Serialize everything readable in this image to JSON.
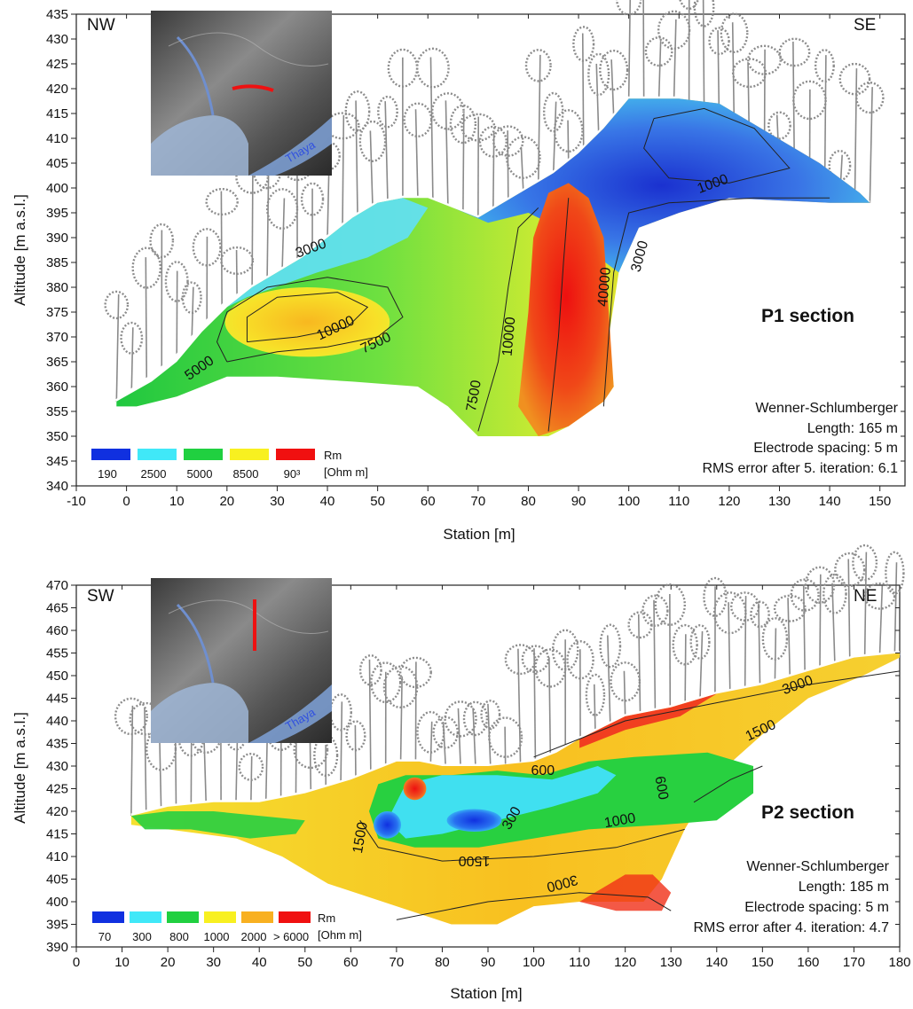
{
  "chart_data": [
    {
      "type": "heatmap",
      "id": "p1",
      "corner_left": "NW",
      "corner_right": "SE",
      "title": "P1 section",
      "xlabel": "Station [m]",
      "ylabel": "Altitude [m a.s.l.]",
      "xlim": [
        -10,
        155
      ],
      "ylim": [
        340,
        435
      ],
      "x_ticks": [
        -10,
        0,
        10,
        20,
        30,
        40,
        50,
        60,
        70,
        80,
        90,
        100,
        110,
        120,
        130,
        140,
        150
      ],
      "y_ticks": [
        340,
        345,
        350,
        355,
        360,
        365,
        370,
        375,
        380,
        385,
        390,
        395,
        400,
        405,
        410,
        415,
        420,
        425,
        430,
        435
      ],
      "info_lines": [
        "Wenner-Schlumberger",
        "Length: 165 m",
        "Electrode spacing: 5 m",
        "RMS error after 5. iteration: 6.1"
      ],
      "legend": {
        "unit_top": "Rm",
        "unit_bottom": "[Ohm m]",
        "labels": [
          "190",
          "2500",
          "5000",
          "8500",
          "90³"
        ],
        "colors": [
          "#1030e0",
          "#40e8f8",
          "#20d040",
          "#f8f020",
          "#f01010"
        ]
      },
      "inset": {
        "river_label": "Thaya",
        "profile_color": "#ee1111"
      },
      "surface_profile": {
        "x": [
          -2,
          5,
          10,
          15,
          20,
          25,
          30,
          35,
          40,
          45,
          50,
          55,
          60,
          65,
          70,
          75,
          80,
          85,
          90,
          95,
          100,
          105,
          110,
          115,
          120,
          125,
          130,
          135,
          140,
          145,
          148
        ],
        "y": [
          357,
          362,
          366,
          372,
          377,
          380,
          383,
          386,
          390,
          394,
          397,
          398,
          398,
          396,
          394,
          397,
          400,
          403,
          407,
          412,
          418,
          418,
          418,
          416,
          412,
          408,
          403,
          400,
          398,
          397,
          397
        ]
      },
      "contour_labels": [
        {
          "text": "3000",
          "x": 37,
          "y": 387,
          "angle": -20
        },
        {
          "text": "10000",
          "x": 42,
          "y": 371,
          "angle": -25
        },
        {
          "text": "7500",
          "x": 50,
          "y": 368,
          "angle": -25
        },
        {
          "text": "5000",
          "x": 15,
          "y": 363,
          "angle": -35
        },
        {
          "text": "7500",
          "x": 70,
          "y": 358,
          "angle": -80
        },
        {
          "text": "10000",
          "x": 77,
          "y": 370,
          "angle": -85
        },
        {
          "text": "40000",
          "x": 96,
          "y": 380,
          "angle": -85
        },
        {
          "text": "3000",
          "x": 103,
          "y": 386,
          "angle": -75
        },
        {
          "text": "1000",
          "x": 117,
          "y": 400,
          "angle": -20
        }
      ]
    },
    {
      "type": "heatmap",
      "id": "p2",
      "corner_left": "SW",
      "corner_right": "NE",
      "title": "P2 section",
      "xlabel": "Station [m]",
      "ylabel": "Altitude [m a.s.l.]",
      "xlim": [
        0,
        180
      ],
      "ylim": [
        390,
        470
      ],
      "x_ticks": [
        0,
        10,
        20,
        30,
        40,
        50,
        60,
        70,
        80,
        90,
        100,
        110,
        120,
        130,
        140,
        150,
        160,
        170,
        180
      ],
      "y_ticks": [
        390,
        395,
        400,
        405,
        410,
        415,
        420,
        425,
        430,
        435,
        440,
        445,
        450,
        455,
        460,
        465,
        470
      ],
      "info_lines": [
        "Wenner-Schlumberger",
        "Length: 185 m",
        "Electrode spacing: 5 m",
        "RMS error after 4. iteration: 4.7"
      ],
      "legend": {
        "unit_top": "Rm",
        "unit_bottom": "[Ohm m]",
        "labels": [
          "70",
          "300",
          "800",
          "1000",
          "2000",
          "> 6000"
        ],
        "colors": [
          "#1030e0",
          "#40e8f8",
          "#20d040",
          "#f8f020",
          "#f8b020",
          "#f01010"
        ]
      },
      "inset": {
        "river_label": "Thaya",
        "profile_color": "#ee1111"
      },
      "surface_profile": {
        "x": [
          12,
          20,
          30,
          40,
          50,
          60,
          65,
          70,
          75,
          80,
          85,
          90,
          95,
          100,
          105,
          110,
          120,
          130,
          140,
          150,
          160,
          170,
          180
        ],
        "y": [
          419,
          421,
          422,
          422,
          424,
          427,
          429,
          431,
          431,
          430,
          430,
          430,
          430,
          431,
          433,
          436,
          441,
          443,
          446,
          448,
          451,
          454,
          455
        ]
      },
      "contour_labels": [
        {
          "text": "3000",
          "x": 158,
          "y": 447,
          "angle": -20
        },
        {
          "text": "1500",
          "x": 150,
          "y": 437,
          "angle": -25
        },
        {
          "text": "600",
          "x": 102,
          "y": 428,
          "angle": 0
        },
        {
          "text": "600",
          "x": 127,
          "y": 425,
          "angle": 80
        },
        {
          "text": "300",
          "x": 96,
          "y": 418,
          "angle": -60
        },
        {
          "text": "1000",
          "x": 119,
          "y": 417,
          "angle": -10
        },
        {
          "text": "1500",
          "x": 63,
          "y": 414,
          "angle": -80
        },
        {
          "text": "1500",
          "x": 87,
          "y": 410,
          "angle": 180
        },
        {
          "text": "3000",
          "x": 106,
          "y": 405,
          "angle": 165
        }
      ]
    }
  ]
}
